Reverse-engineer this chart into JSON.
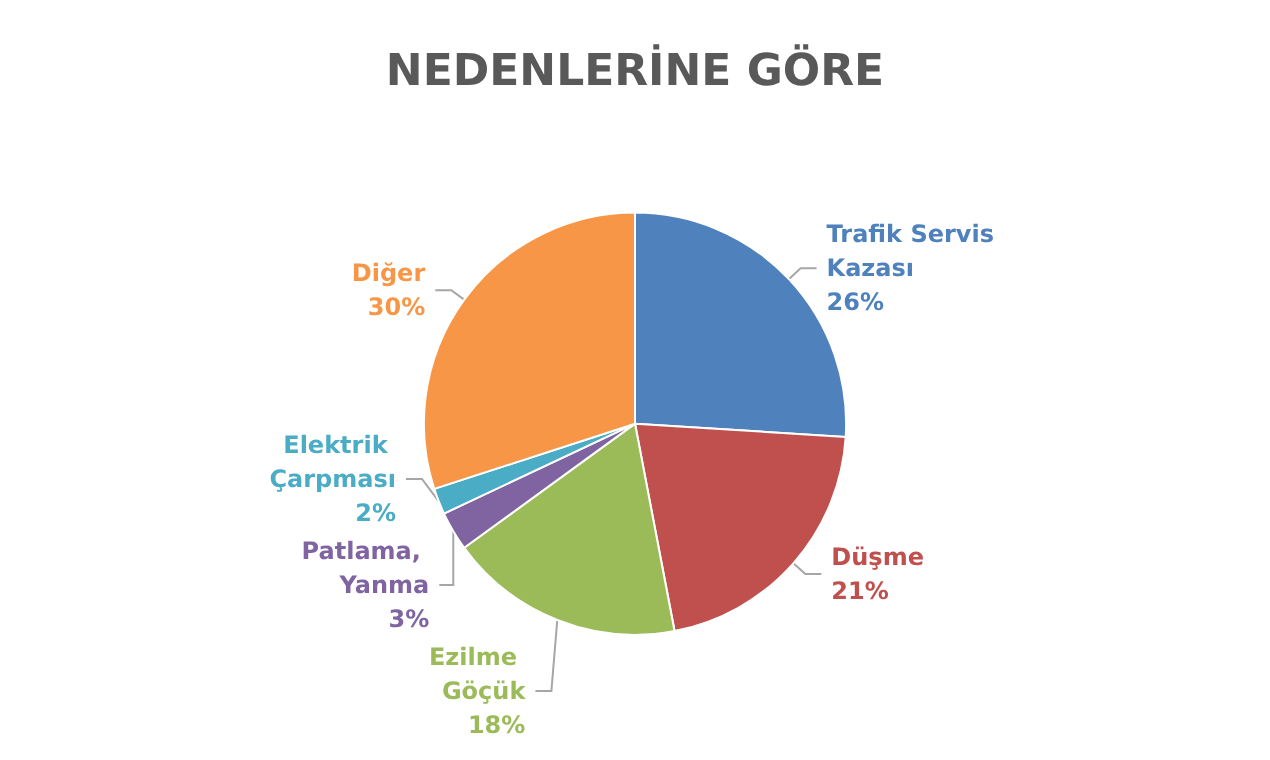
{
  "chart_data": {
    "type": "pie",
    "title": "NEDENLERİNE GÖRE",
    "categories": [
      "Trafik Servis Kazası",
      "Düşme",
      "Ezilme Göçük",
      "Patlama, Yanma",
      "Elektrik Çarpması",
      "Diğer"
    ],
    "values": [
      26,
      21,
      18,
      3,
      2,
      30
    ],
    "value_labels": [
      "26%",
      "21%",
      "18%",
      "3%",
      "2%",
      "30%"
    ],
    "colors": [
      "#4f81bd",
      "#c0504d",
      "#9bbb59",
      "#8064a2",
      "#4bacc6",
      "#f79646"
    ],
    "legend": false
  }
}
